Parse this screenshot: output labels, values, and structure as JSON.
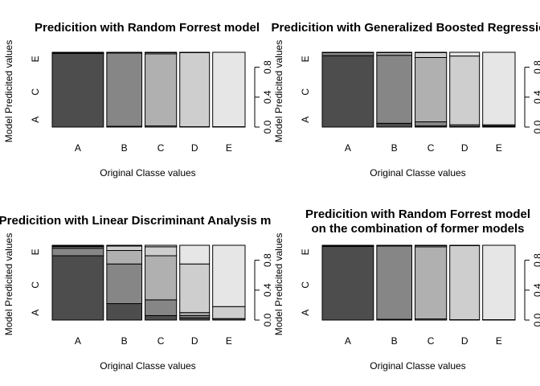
{
  "chart_data": [
    {
      "type": "bar",
      "subtype": "mosaic",
      "title": [
        "Predicition with Random Forrest model"
      ],
      "xlabel": "Original Classe values",
      "ylabel": "Model Predicited values",
      "categories": [
        "A",
        "B",
        "C",
        "D",
        "E"
      ],
      "y_categories": [
        "A",
        "B",
        "C",
        "D",
        "E"
      ],
      "y_tick_labels": [
        "A",
        "C",
        "E"
      ],
      "right_ticks": [
        "0.0",
        "0.4",
        "0.8"
      ],
      "column_widths": [
        0.285,
        0.195,
        0.175,
        0.165,
        0.18
      ],
      "proportions": [
        [
          0.985,
          0.01,
          0.0,
          0.0,
          0.005
        ],
        [
          0.01,
          0.98,
          0.01,
          0.0,
          0.0
        ],
        [
          0.0,
          0.015,
          0.965,
          0.015,
          0.005
        ],
        [
          0.0,
          0.0,
          0.005,
          0.99,
          0.005
        ],
        [
          0.0,
          0.0,
          0.0,
          0.005,
          0.995
        ]
      ],
      "colors": [
        "#4d4d4d",
        "#868686",
        "#b0b0b0",
        "#cecece",
        "#e6e6e6"
      ]
    },
    {
      "type": "bar",
      "subtype": "mosaic",
      "title": [
        "Predicition with Generalized Boosted Regression"
      ],
      "xlabel": "Original Classe values",
      "ylabel": "Model Predicited values",
      "categories": [
        "A",
        "B",
        "C",
        "D",
        "E"
      ],
      "y_categories": [
        "A",
        "B",
        "C",
        "D",
        "E"
      ],
      "y_tick_labels": [
        "A",
        "C",
        "E"
      ],
      "right_ticks": [
        "0.0",
        "0.4",
        "0.8"
      ],
      "column_widths": [
        0.285,
        0.195,
        0.175,
        0.165,
        0.18
      ],
      "proportions": [
        [
          0.955,
          0.04,
          0.0,
          0.0,
          0.005
        ],
        [
          0.05,
          0.91,
          0.035,
          0.0,
          0.005
        ],
        [
          0.015,
          0.055,
          0.86,
          0.065,
          0.005
        ],
        [
          0.01,
          0.0,
          0.02,
          0.92,
          0.05
        ],
        [
          0.0,
          0.01,
          0.005,
          0.015,
          0.97
        ]
      ],
      "colors": [
        "#4d4d4d",
        "#868686",
        "#b0b0b0",
        "#cecece",
        "#e6e6e6"
      ]
    },
    {
      "type": "bar",
      "subtype": "mosaic",
      "title": [
        "Predicition with Linear Discriminant Analysis m"
      ],
      "xlabel": "Original Classe values",
      "ylabel": "Model Predicited values",
      "categories": [
        "A",
        "B",
        "C",
        "D",
        "E"
      ],
      "y_categories": [
        "A",
        "B",
        "C",
        "D",
        "E"
      ],
      "y_tick_labels": [
        "A",
        "C",
        "E"
      ],
      "right_ticks": [
        "0.0",
        "0.4",
        "0.8"
      ],
      "column_widths": [
        0.285,
        0.195,
        0.175,
        0.165,
        0.18
      ],
      "proportions": [
        [
          0.86,
          0.1,
          0.02,
          0.01,
          0.01
        ],
        [
          0.22,
          0.53,
          0.18,
          0.06,
          0.01
        ],
        [
          0.06,
          0.21,
          0.59,
          0.12,
          0.02
        ],
        [
          0.03,
          0.03,
          0.04,
          0.65,
          0.25
        ],
        [
          0.02,
          0.0,
          0.0,
          0.16,
          0.82
        ]
      ],
      "colors": [
        "#4d4d4d",
        "#868686",
        "#b0b0b0",
        "#cecece",
        "#e6e6e6"
      ]
    },
    {
      "type": "bar",
      "subtype": "mosaic",
      "title": [
        "Predicition with Random Forrest model",
        "on the combination of former models"
      ],
      "xlabel": "Original Classe values",
      "ylabel": "Model Predicited values",
      "categories": [
        "A",
        "B",
        "C",
        "D",
        "E"
      ],
      "y_categories": [
        "A",
        "B",
        "C",
        "D",
        "E"
      ],
      "y_tick_labels": [
        "A",
        "C",
        "E"
      ],
      "right_ticks": [
        "0.0",
        "0.4",
        "0.8"
      ],
      "column_widths": [
        0.285,
        0.195,
        0.175,
        0.165,
        0.18
      ],
      "proportions": [
        [
          0.985,
          0.01,
          0.0,
          0.0,
          0.005
        ],
        [
          0.01,
          0.98,
          0.01,
          0.0,
          0.0
        ],
        [
          0.0,
          0.015,
          0.965,
          0.015,
          0.005
        ],
        [
          0.0,
          0.0,
          0.005,
          0.99,
          0.005
        ],
        [
          0.0,
          0.0,
          0.0,
          0.005,
          0.995
        ]
      ],
      "colors": [
        "#4d4d4d",
        "#868686",
        "#b0b0b0",
        "#cecece",
        "#e6e6e6"
      ]
    }
  ]
}
